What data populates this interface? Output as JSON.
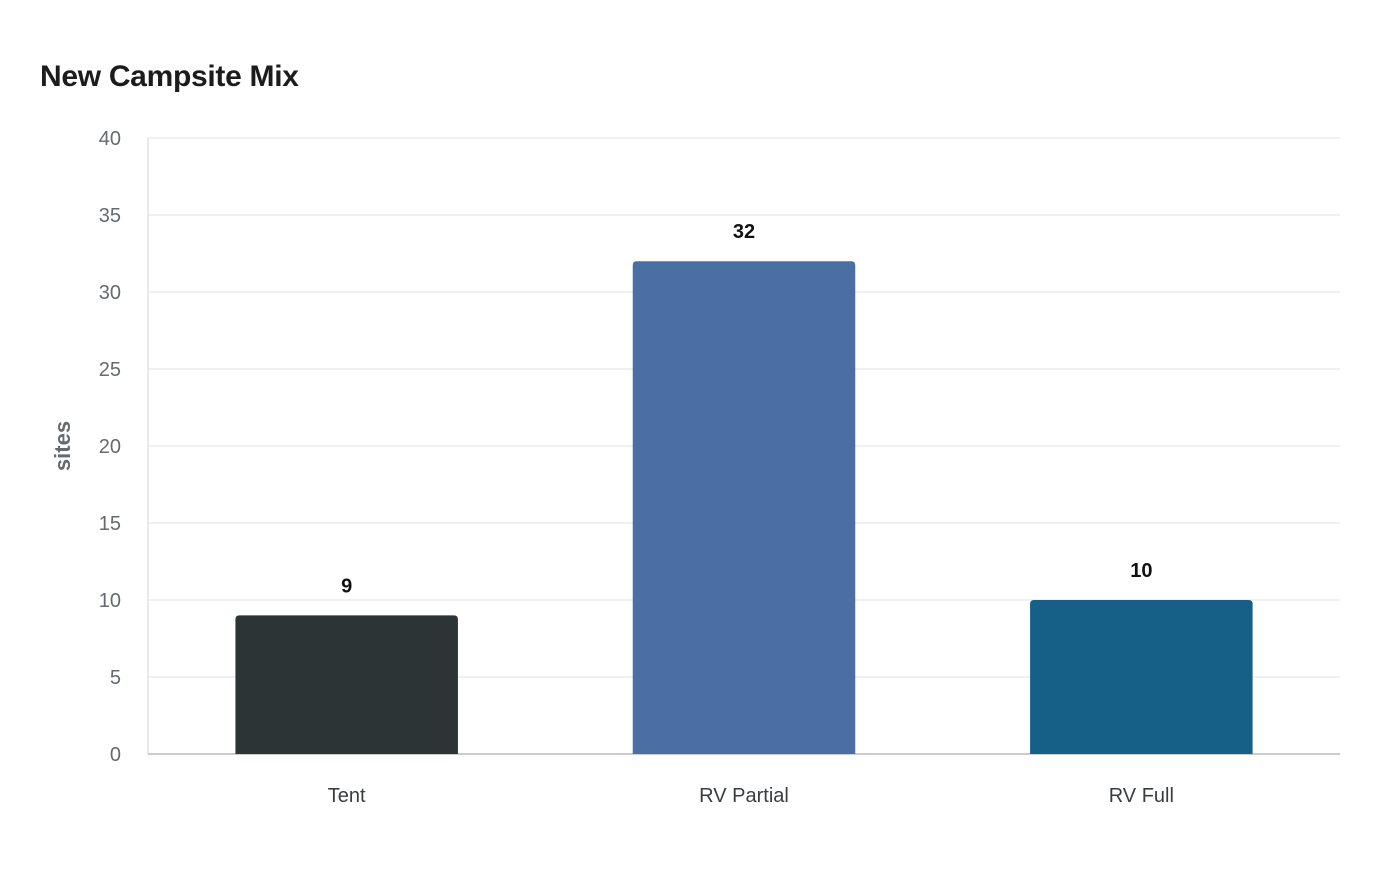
{
  "chart_data": {
    "type": "bar",
    "title": "New Campsite Mix",
    "xlabel": "",
    "ylabel": "sites",
    "categories": [
      "Tent",
      "RV Partial",
      "RV Full"
    ],
    "values": [
      9,
      32,
      10
    ],
    "colors": [
      "#2d3436",
      "#4a6fa5",
      "#166088"
    ],
    "ylim": [
      0,
      40
    ],
    "yticks": [
      0,
      5,
      10,
      15,
      20,
      25,
      30,
      35,
      40
    ],
    "grid": true,
    "legend": "none",
    "data_labels": true
  }
}
